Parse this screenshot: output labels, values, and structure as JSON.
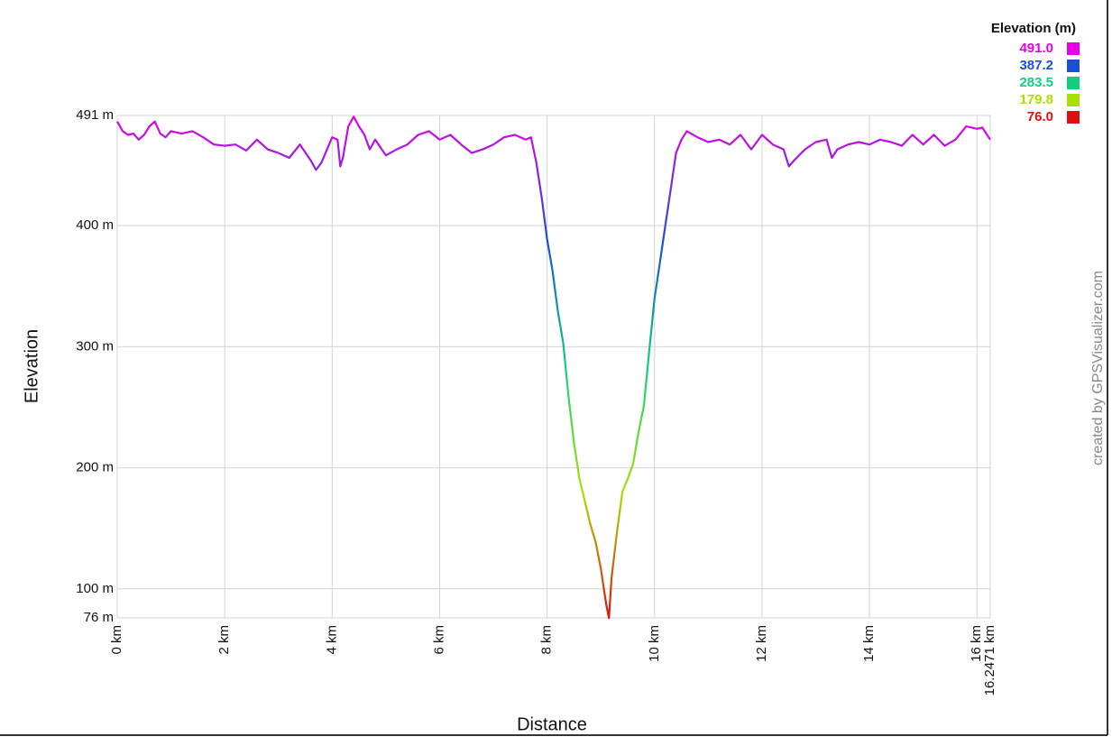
{
  "chart_data": {
    "type": "line",
    "x_label": "Distance",
    "y_label": "Elevation",
    "credit": "created by GPSVisualizer.com",
    "legend_title": "Elevation (m)",
    "colorscale": [
      {
        "value": 491,
        "label": "491.0",
        "color": "#e600e6"
      },
      {
        "value": 387.2,
        "label": "387.2",
        "color": "#1a4fd8"
      },
      {
        "value": 283.5,
        "label": "283.5",
        "color": "#10d080"
      },
      {
        "value": 179.8,
        "label": "179.8",
        "color": "#a8e000"
      },
      {
        "value": 76,
        "label": "76.0",
        "color": "#dd1010"
      }
    ],
    "x": [
      0,
      0.1,
      0.2,
      0.3,
      0.4,
      0.5,
      0.6,
      0.7,
      0.8,
      0.9,
      1.0,
      1.2,
      1.4,
      1.6,
      1.8,
      2.0,
      2.2,
      2.4,
      2.6,
      2.8,
      3.0,
      3.2,
      3.4,
      3.6,
      3.7,
      3.8,
      4.0,
      4.1,
      4.15,
      4.2,
      4.3,
      4.4,
      4.5,
      4.6,
      4.7,
      4.8,
      5.0,
      5.2,
      5.4,
      5.6,
      5.8,
      6.0,
      6.2,
      6.4,
      6.6,
      6.8,
      7.0,
      7.2,
      7.4,
      7.6,
      7.7,
      7.8,
      7.9,
      8.0,
      8.1,
      8.2,
      8.3,
      8.4,
      8.5,
      8.6,
      8.7,
      8.8,
      8.9,
      9.0,
      9.1,
      9.15,
      9.2,
      9.3,
      9.4,
      9.5,
      9.6,
      9.7,
      9.8,
      9.9,
      10.0,
      10.1,
      10.2,
      10.3,
      10.4,
      10.5,
      10.6,
      10.8,
      11.0,
      11.2,
      11.4,
      11.6,
      11.8,
      12.0,
      12.2,
      12.4,
      12.5,
      12.6,
      12.8,
      13.0,
      13.2,
      13.3,
      13.4,
      13.6,
      13.8,
      14.0,
      14.2,
      14.4,
      14.6,
      14.8,
      15.0,
      15.2,
      15.4,
      15.6,
      15.8,
      16.0,
      16.1,
      16.2471
    ],
    "values": [
      486,
      478,
      475,
      476,
      471,
      475,
      482,
      486,
      476,
      473,
      478,
      476,
      478,
      473,
      467,
      466,
      467,
      462,
      471,
      463,
      460,
      456,
      467,
      454,
      446,
      452,
      473,
      471,
      449,
      456,
      482,
      490,
      482,
      475,
      463,
      471,
      458,
      463,
      467,
      475,
      478,
      471,
      475,
      467,
      460,
      463,
      467,
      473,
      475,
      471,
      473,
      452,
      423,
      389,
      363,
      329,
      303,
      258,
      221,
      191,
      173,
      154,
      139,
      117,
      87,
      76,
      109,
      147,
      180,
      191,
      203,
      229,
      251,
      296,
      340,
      370,
      400,
      430,
      460,
      471,
      478,
      473,
      469,
      471,
      467,
      475,
      463,
      475,
      467,
      463,
      449,
      454,
      463,
      469,
      471,
      456,
      463,
      467,
      469,
      467,
      471,
      469,
      466,
      475,
      467,
      475,
      466,
      471,
      482,
      480,
      481,
      471
    ],
    "xlim": [
      0,
      16.2471
    ],
    "ylim": [
      76,
      491
    ],
    "xticks": [
      {
        "value": 0,
        "label": "0 km"
      },
      {
        "value": 2,
        "label": "2 km"
      },
      {
        "value": 4,
        "label": "4 km"
      },
      {
        "value": 6,
        "label": "6 km"
      },
      {
        "value": 8,
        "label": "8 km"
      },
      {
        "value": 10,
        "label": "10 km"
      },
      {
        "value": 12,
        "label": "12 km"
      },
      {
        "value": 14,
        "label": "14 km"
      },
      {
        "value": 16,
        "label": "16 km"
      },
      {
        "value": 16.2471,
        "label": "16.2471 km"
      }
    ],
    "yticks": [
      {
        "value": 76,
        "label": "76 m"
      },
      {
        "value": 100,
        "label": "100 m"
      },
      {
        "value": 200,
        "label": "200 m"
      },
      {
        "value": 300,
        "label": "300 m"
      },
      {
        "value": 400,
        "label": "400 m"
      },
      {
        "value": 491,
        "label": "491 m"
      }
    ],
    "grid": true
  }
}
